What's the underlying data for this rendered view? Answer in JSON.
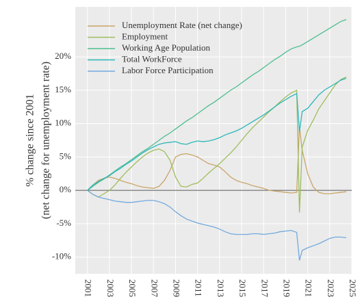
{
  "chart_data": {
    "type": "line",
    "ylabel": [
      "% change since 2001",
      "(net change for unemployment rate)"
    ],
    "x": [
      2001,
      2001.5,
      2002,
      2002.5,
      2003,
      2003.5,
      2004,
      2004.5,
      2005,
      2005.5,
      2006,
      2006.5,
      2007,
      2007.5,
      2008,
      2008.5,
      2009,
      2009.5,
      2010,
      2010.5,
      2011,
      2011.5,
      2012,
      2012.5,
      2013,
      2013.5,
      2014,
      2014.5,
      2015,
      2015.5,
      2016,
      2016.5,
      2017,
      2017.5,
      2018,
      2018.5,
      2019,
      2019.5,
      2020,
      2020.25,
      2020.5,
      2021,
      2021.5,
      2022,
      2022.5,
      2023,
      2023.5,
      2024,
      2024.5
    ],
    "series": [
      {
        "name": "Unemployment Rate (net change)",
        "color": "#c9a467",
        "values": [
          0,
          0.8,
          1.5,
          1.8,
          2,
          1.8,
          1.5,
          1.2,
          1,
          0.7,
          0.5,
          0.4,
          0.3,
          0.6,
          1.5,
          3,
          5,
          5.4,
          5.5,
          5.3,
          5,
          4.5,
          4,
          3.8,
          3.5,
          2.8,
          2,
          1.5,
          1.2,
          1,
          0.7,
          0.5,
          0.3,
          0,
          -0.1,
          -0.2,
          -0.3,
          -0.4,
          -0.3,
          9.5,
          6,
          2.5,
          0.5,
          -0.3,
          -0.5,
          -0.5,
          -0.4,
          -0.3,
          -0.2
        ]
      },
      {
        "name": "Employment",
        "color": "#9dbd5b",
        "values": [
          0,
          -0.6,
          -1,
          -0.5,
          0,
          0.8,
          1.8,
          2.7,
          3.5,
          4.3,
          5,
          5.6,
          6,
          6.2,
          5.8,
          4.5,
          2,
          0.6,
          0.5,
          0.9,
          1.1,
          1.8,
          2.6,
          3.3,
          4,
          4.8,
          5.6,
          6.5,
          7.5,
          8.5,
          9.4,
          10.2,
          11,
          11.8,
          12.5,
          13.3,
          14,
          14.6,
          15,
          -3.3,
          6.5,
          9,
          10.5,
          12.2,
          13.4,
          14.6,
          15.8,
          16.6,
          17
        ]
      },
      {
        "name": "Working Age Population",
        "color": "#4cbe8e",
        "values": [
          0,
          0.6,
          1.2,
          1.7,
          2.3,
          2.9,
          3.5,
          4,
          4.6,
          5.2,
          5.8,
          6.3,
          6.9,
          7.5,
          8.1,
          8.6,
          9.2,
          9.8,
          10.4,
          10.9,
          11.5,
          12.1,
          12.7,
          13.2,
          13.8,
          14.4,
          15,
          15.5,
          16.1,
          16.7,
          17.3,
          17.8,
          18.4,
          19,
          19.6,
          20.1,
          20.7,
          21.2,
          21.5,
          21.6,
          21.8,
          22.3,
          22.8,
          23.3,
          23.8,
          24.3,
          24.8,
          25.3,
          25.6
        ]
      },
      {
        "name": "Total WorkForce",
        "color": "#2bb6b8",
        "values": [
          0,
          0.8,
          1.3,
          1.8,
          2.2,
          2.8,
          3.3,
          3.9,
          4.4,
          5,
          5.6,
          6.1,
          6.5,
          6.9,
          7.1,
          7.2,
          7.3,
          7,
          6.9,
          7.2,
          7.4,
          7.3,
          7.4,
          7.6,
          7.9,
          8.3,
          8.6,
          8.9,
          9.3,
          9.8,
          10.3,
          10.8,
          11.3,
          11.9,
          12.5,
          13.1,
          13.6,
          14.1,
          14.5,
          8.8,
          11.8,
          12.3,
          13.3,
          14.3,
          15,
          15.5,
          16,
          16.5,
          16.8
        ]
      },
      {
        "name": "Labor Force Participation",
        "color": "#72a9de",
        "values": [
          0,
          -0.6,
          -1,
          -1.2,
          -1.4,
          -1.6,
          -1.7,
          -1.8,
          -1.8,
          -1.7,
          -1.6,
          -1.5,
          -1.5,
          -1.7,
          -2,
          -2.5,
          -3.2,
          -3.8,
          -4.3,
          -4.6,
          -4.9,
          -5.1,
          -5.3,
          -5.5,
          -5.8,
          -6.2,
          -6.5,
          -6.6,
          -6.6,
          -6.6,
          -6.5,
          -6.5,
          -6.6,
          -6.5,
          -6.4,
          -6.2,
          -6.1,
          -6,
          -6.3,
          -10.5,
          -9,
          -8.6,
          -8.3,
          -8,
          -7.6,
          -7.2,
          -7,
          -7,
          -7.1
        ]
      }
    ],
    "xlim": [
      1999.9,
      2025.0
    ],
    "xticks": [
      2001,
      2003,
      2005,
      2007,
      2009,
      2011,
      2013,
      2015,
      2017,
      2019,
      2021,
      2023,
      2025
    ],
    "ylim": [
      -12.5,
      27.5
    ],
    "yticks": [
      {
        "value": -10,
        "label": "-10%"
      },
      {
        "value": -5,
        "label": "-5%"
      },
      {
        "value": 0,
        "label": "0%"
      },
      {
        "value": 5,
        "label": "5%"
      },
      {
        "value": 10,
        "label": "10%"
      },
      {
        "value": 15,
        "label": "15%"
      },
      {
        "value": 20,
        "label": "20%"
      }
    ],
    "hline": 0,
    "grid": true,
    "legend": "top-left"
  }
}
